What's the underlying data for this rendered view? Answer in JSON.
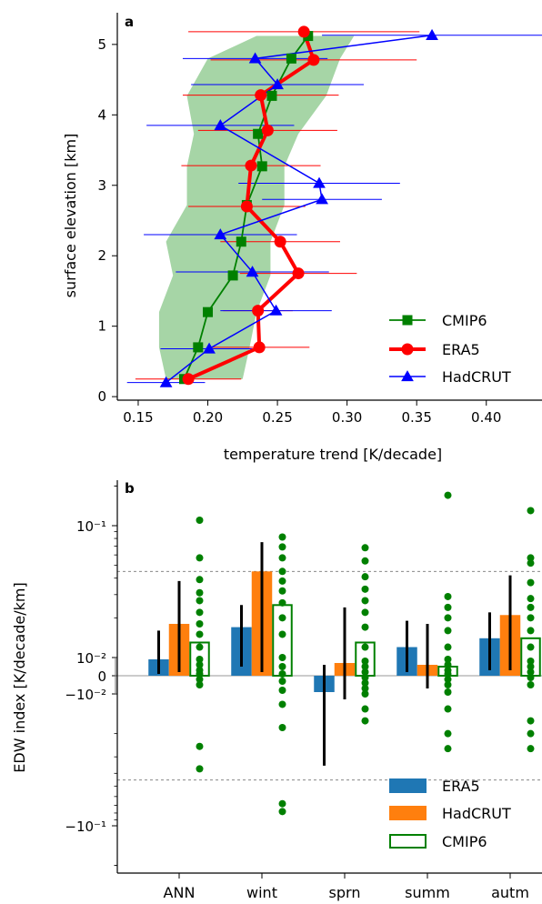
{
  "chart_data": [
    {
      "panel_label": "a",
      "type": "line",
      "xlabel": "temperature trend [K/decade]",
      "ylabel": "surface elevation [km]",
      "xlim": [
        0.135,
        0.44
      ],
      "ylim": [
        -0.05,
        5.45
      ],
      "xticks": [
        0.15,
        0.2,
        0.25,
        0.3,
        0.35,
        0.4
      ],
      "xtick_labels": [
        "0.15",
        "0.20",
        "0.25",
        "0.30",
        "0.35",
        "0.40"
      ],
      "yticks": [
        0,
        1,
        2,
        3,
        4,
        5
      ],
      "ytick_labels": [
        "0",
        "1",
        "2",
        "3",
        "4",
        "5"
      ],
      "legend_position": "lower-right",
      "colors": {
        "CMIP6": "#008000",
        "ERA5": "#ff0000",
        "HadCRUT": "#0000ff",
        "band": "#a6d5a6"
      },
      "band": {
        "name": "CMIP6 spread",
        "y": [
          0.25,
          0.7,
          1.2,
          1.72,
          2.2,
          2.72,
          3.27,
          3.73,
          4.27,
          4.8,
          5.12
        ],
        "low": [
          0.17,
          0.165,
          0.165,
          0.175,
          0.17,
          0.185,
          0.185,
          0.19,
          0.185,
          0.2,
          0.235
        ],
        "high": [
          0.225,
          0.23,
          0.235,
          0.245,
          0.245,
          0.255,
          0.255,
          0.265,
          0.285,
          0.295,
          0.305
        ]
      },
      "series": [
        {
          "name": "CMIP6",
          "marker": "square",
          "points": [
            {
              "x": 0.183,
              "y": 0.25
            },
            {
              "x": 0.193,
              "y": 0.7
            },
            {
              "x": 0.2,
              "y": 1.2
            },
            {
              "x": 0.218,
              "y": 1.72
            },
            {
              "x": 0.224,
              "y": 2.2
            },
            {
              "x": 0.228,
              "y": 2.72
            },
            {
              "x": 0.239,
              "y": 3.27
            },
            {
              "x": 0.236,
              "y": 3.73
            },
            {
              "x": 0.246,
              "y": 4.27
            },
            {
              "x": 0.26,
              "y": 4.8
            },
            {
              "x": 0.272,
              "y": 5.12
            }
          ]
        },
        {
          "name": "ERA5",
          "marker": "circle",
          "points": [
            {
              "x": 0.186,
              "y": 0.25,
              "err": 0.038
            },
            {
              "x": 0.237,
              "y": 0.7,
              "err": 0.036
            },
            {
              "x": 0.236,
              "y": 1.22,
              "err": 0.025
            },
            {
              "x": 0.265,
              "y": 1.75,
              "err": 0.042
            },
            {
              "x": 0.252,
              "y": 2.2,
              "err": 0.043
            },
            {
              "x": 0.228,
              "y": 2.7,
              "err": 0.042
            },
            {
              "x": 0.231,
              "y": 3.28,
              "err": 0.05
            },
            {
              "x": 0.243,
              "y": 3.78,
              "err": 0.05
            },
            {
              "x": 0.238,
              "y": 4.28,
              "err": 0.056
            },
            {
              "x": 0.276,
              "y": 4.78,
              "err": 0.074
            },
            {
              "x": 0.269,
              "y": 5.18,
              "err": 0.083
            }
          ]
        },
        {
          "name": "HadCRUT",
          "marker": "triangle",
          "points": [
            {
              "x": 0.17,
              "y": 0.2,
              "err": 0.028
            },
            {
              "x": 0.201,
              "y": 0.68,
              "err": 0.035
            },
            {
              "x": 0.249,
              "y": 1.22,
              "err": 0.04
            },
            {
              "x": 0.232,
              "y": 1.77,
              "err": 0.055
            },
            {
              "x": 0.209,
              "y": 2.3,
              "err": 0.055
            },
            {
              "x": 0.282,
              "y": 2.8,
              "err": 0.043
            },
            {
              "x": 0.28,
              "y": 3.03,
              "err": 0.058
            },
            {
              "x": 0.209,
              "y": 3.85,
              "err": 0.053
            },
            {
              "x": 0.25,
              "y": 4.43,
              "err": 0.062
            },
            {
              "x": 0.234,
              "y": 4.8,
              "err": 0.052
            },
            {
              "x": 0.361,
              "y": 5.13,
              "err": 0.079
            }
          ]
        }
      ]
    },
    {
      "panel_label": "b",
      "type": "bar",
      "ylabel": "EDW index [K/decade/km]",
      "y_scale": "symlog",
      "ytick_labels": [
        "10⁻¹",
        "10⁻²",
        "0",
        "−10⁻²",
        "−10⁻¹"
      ],
      "categories": [
        "ANN",
        "wint",
        "sprn",
        "summ",
        "autm"
      ],
      "legend_position": "lower-right",
      "colors": {
        "ERA5": "#1f77b4",
        "HadCRUT": "#ff7f0e",
        "CMIP6": "#008000"
      },
      "series": [
        {
          "name": "ERA5",
          "style": "filled",
          "values": [
            0.009,
            0.017,
            -0.009,
            0.012,
            0.014
          ],
          "err_low": [
            0.001,
            0.005,
            -0.035,
            0.002,
            0.003
          ],
          "err_high": [
            0.016,
            0.025,
            0.006,
            0.019,
            0.022
          ]
        },
        {
          "name": "HadCRUT",
          "style": "filled",
          "values": [
            0.018,
            0.045,
            0.007,
            0.006,
            0.021
          ],
          "err_low": [
            0.002,
            0.002,
            -0.011,
            -0.007,
            0.003
          ],
          "err_high": [
            0.038,
            0.075,
            0.024,
            0.018,
            0.042
          ]
        },
        {
          "name": "CMIP6",
          "style": "open",
          "values": [
            0.013,
            0.025,
            0.013,
            0.005,
            0.014
          ]
        }
      ],
      "cmip6_members": [
        [
          0.11,
          0.057,
          0.039,
          0.031,
          0.027,
          0.022,
          0.018,
          0.015,
          0.012,
          0.009,
          0.006,
          0.003,
          0.001,
          -0.002,
          -0.005,
          -0.025,
          -0.037
        ],
        [
          0.082,
          0.069,
          0.057,
          0.045,
          0.038,
          0.032,
          0.026,
          0.02,
          0.015,
          0.01,
          0.005,
          0.001,
          -0.003,
          -0.008,
          -0.012,
          -0.018,
          -0.068,
          -0.078
        ],
        [
          0.068,
          0.054,
          0.041,
          0.033,
          0.027,
          0.022,
          0.017,
          0.012,
          0.008,
          0.005,
          0.002,
          -0.001,
          -0.004,
          -0.007,
          -0.01,
          -0.013,
          -0.016
        ],
        [
          0.17,
          0.029,
          0.024,
          0.02,
          0.016,
          0.012,
          0.009,
          0.006,
          0.003,
          0.001,
          -0.002,
          -0.005,
          -0.009,
          -0.013,
          -0.02,
          -0.026
        ],
        [
          0.13,
          0.057,
          0.052,
          0.037,
          0.028,
          0.024,
          0.02,
          0.016,
          0.012,
          0.008,
          0.005,
          0.002,
          -0.001,
          -0.005,
          -0.016,
          -0.02,
          -0.026
        ]
      ],
      "reference_lines": [
        0.045,
        -0.045
      ]
    }
  ]
}
